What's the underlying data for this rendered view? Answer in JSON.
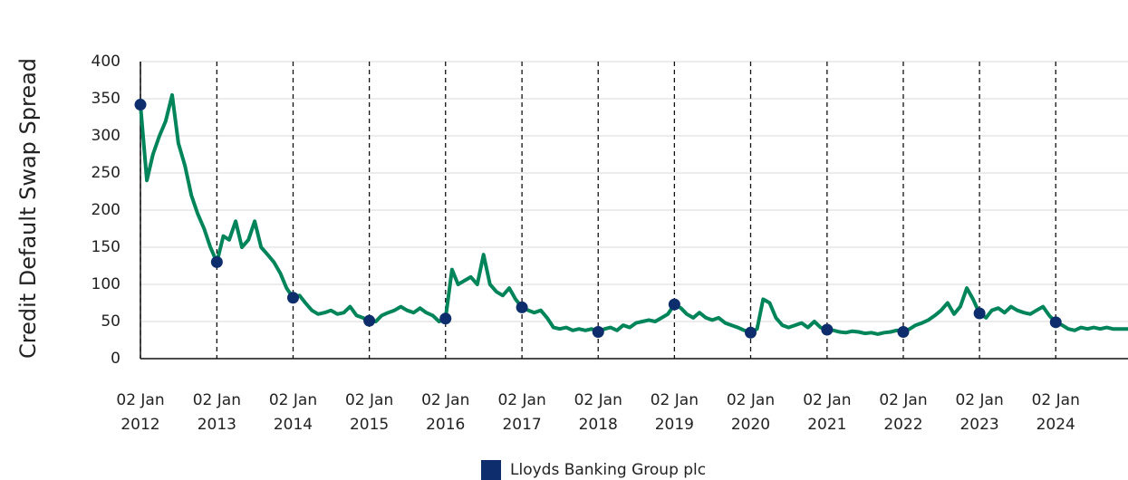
{
  "chart_data": {
    "type": "line",
    "y_label": "Credit Default Swap Spread",
    "xlim": [
      "2012-01-02",
      "2024-12-13"
    ],
    "xticks": [
      {
        "value": "2012-01-02",
        "label": "02 Jan 2012"
      },
      {
        "value": "2013-01-02",
        "label": "02 Jan 2013"
      },
      {
        "value": "2014-01-02",
        "label": "02 Jan 2014"
      },
      {
        "value": "2015-01-02",
        "label": "02 Jan 2015"
      },
      {
        "value": "2016-01-02",
        "label": "02 Jan 2016"
      },
      {
        "value": "2017-01-02",
        "label": "02 Jan 2017"
      },
      {
        "value": "2018-01-02",
        "label": "02 Jan 2018"
      },
      {
        "value": "2019-01-02",
        "label": "02 Jan 2019"
      },
      {
        "value": "2020-01-02",
        "label": "02 Jan 2020"
      },
      {
        "value": "2021-01-02",
        "label": "02 Jan 2021"
      },
      {
        "value": "2022-01-02",
        "label": "02 Jan 2022"
      },
      {
        "value": "2023-01-02",
        "label": "02 Jan 2023"
      },
      {
        "value": "2024-01-02",
        "label": "02 Jan 2024"
      }
    ],
    "ylim": [
      0,
      400
    ],
    "yticks": [
      0,
      50,
      100,
      150,
      200,
      250,
      300,
      350,
      400
    ],
    "grid": true,
    "legend": "bottom",
    "series": [
      {
        "name": "Lloyds Banking Group plc",
        "color": "#0d2d6c",
        "line_color": "#00845a",
        "x": [
          "2012-01-02",
          "2012-02-02",
          "2012-03-02",
          "2012-04-02",
          "2012-05-02",
          "2012-06-02",
          "2012-07-02",
          "2012-08-02",
          "2012-09-02",
          "2012-10-02",
          "2012-11-02",
          "2012-12-02",
          "2013-01-02",
          "2013-02-02",
          "2013-03-02",
          "2013-04-02",
          "2013-05-02",
          "2013-06-02",
          "2013-07-02",
          "2013-08-02",
          "2013-09-02",
          "2013-10-02",
          "2013-11-02",
          "2013-12-02",
          "2014-01-02",
          "2014-02-02",
          "2014-03-02",
          "2014-04-02",
          "2014-05-02",
          "2014-06-02",
          "2014-07-02",
          "2014-08-02",
          "2014-09-02",
          "2014-10-02",
          "2014-11-02",
          "2014-12-02",
          "2015-01-02",
          "2015-02-02",
          "2015-03-02",
          "2015-04-02",
          "2015-05-02",
          "2015-06-02",
          "2015-07-02",
          "2015-08-02",
          "2015-09-02",
          "2015-10-02",
          "2015-11-02",
          "2015-12-02",
          "2016-01-02",
          "2016-02-02",
          "2016-03-02",
          "2016-04-02",
          "2016-05-02",
          "2016-06-02",
          "2016-07-02",
          "2016-08-02",
          "2016-09-02",
          "2016-10-02",
          "2016-11-02",
          "2016-12-02",
          "2017-01-02",
          "2017-02-02",
          "2017-03-02",
          "2017-04-02",
          "2017-05-02",
          "2017-06-02",
          "2017-07-02",
          "2017-08-02",
          "2017-09-02",
          "2017-10-02",
          "2017-11-02",
          "2017-12-02",
          "2018-01-02",
          "2018-02-02",
          "2018-03-02",
          "2018-04-02",
          "2018-05-02",
          "2018-06-02",
          "2018-07-02",
          "2018-08-02",
          "2018-09-02",
          "2018-10-02",
          "2018-11-02",
          "2018-12-02",
          "2019-01-02",
          "2019-02-02",
          "2019-03-02",
          "2019-04-02",
          "2019-05-02",
          "2019-06-02",
          "2019-07-02",
          "2019-08-02",
          "2019-09-02",
          "2019-10-02",
          "2019-11-02",
          "2019-12-02",
          "2020-01-02",
          "2020-02-02",
          "2020-03-02",
          "2020-04-02",
          "2020-05-02",
          "2020-06-02",
          "2020-07-02",
          "2020-08-02",
          "2020-09-02",
          "2020-10-02",
          "2020-11-02",
          "2020-12-02",
          "2021-01-02",
          "2021-02-02",
          "2021-03-02",
          "2021-04-02",
          "2021-05-02",
          "2021-06-02",
          "2021-07-02",
          "2021-08-02",
          "2021-09-02",
          "2021-10-02",
          "2021-11-02",
          "2021-12-02",
          "2022-01-02",
          "2022-02-02",
          "2022-03-02",
          "2022-04-02",
          "2022-05-02",
          "2022-06-02",
          "2022-07-02",
          "2022-08-02",
          "2022-09-02",
          "2022-10-02",
          "2022-11-02",
          "2022-12-02",
          "2023-01-02",
          "2023-02-02",
          "2023-03-02",
          "2023-04-02",
          "2023-05-02",
          "2023-06-02",
          "2023-07-02",
          "2023-08-02",
          "2023-09-02",
          "2023-10-02",
          "2023-11-02",
          "2023-12-02",
          "2024-01-02",
          "2024-02-02",
          "2024-03-02",
          "2024-04-02",
          "2024-05-02",
          "2024-06-02",
          "2024-07-02",
          "2024-08-02",
          "2024-09-02",
          "2024-10-02",
          "2024-11-02",
          "2024-12-13"
        ],
        "values": [
          342,
          240,
          275,
          300,
          320,
          355,
          290,
          260,
          220,
          195,
          175,
          150,
          130,
          165,
          160,
          185,
          150,
          160,
          185,
          150,
          140,
          130,
          115,
          95,
          82,
          85,
          75,
          65,
          60,
          62,
          65,
          60,
          62,
          70,
          58,
          55,
          51,
          50,
          58,
          62,
          65,
          70,
          65,
          62,
          68,
          62,
          58,
          50,
          54,
          120,
          100,
          105,
          110,
          100,
          140,
          100,
          90,
          85,
          95,
          80,
          69,
          65,
          62,
          65,
          55,
          42,
          40,
          42,
          38,
          40,
          38,
          40,
          36,
          40,
          42,
          38,
          45,
          42,
          48,
          50,
          52,
          50,
          55,
          60,
          73,
          68,
          60,
          55,
          62,
          55,
          52,
          55,
          48,
          45,
          42,
          38,
          35,
          40,
          80,
          75,
          55,
          45,
          42,
          45,
          48,
          42,
          50,
          42,
          39,
          38,
          36,
          35,
          37,
          36,
          34,
          35,
          33,
          35,
          36,
          38,
          36,
          40,
          45,
          48,
          52,
          58,
          65,
          75,
          60,
          70,
          95,
          80,
          61,
          55,
          65,
          68,
          62,
          70,
          65,
          62,
          60,
          65,
          70,
          58,
          49,
          45,
          40,
          38,
          42,
          40,
          42,
          40,
          42,
          40,
          40,
          40
        ],
        "markers": {
          "x": [
            "2012-01-02",
            "2013-01-02",
            "2014-01-02",
            "2015-01-02",
            "2016-01-02",
            "2017-01-02",
            "2018-01-02",
            "2019-01-02",
            "2020-01-02",
            "2021-01-02",
            "2022-01-02",
            "2023-01-02",
            "2024-01-02"
          ],
          "values": [
            342,
            130,
            82,
            51,
            54,
            69,
            36,
            73,
            35,
            39,
            36,
            61,
            49
          ]
        }
      }
    ]
  }
}
